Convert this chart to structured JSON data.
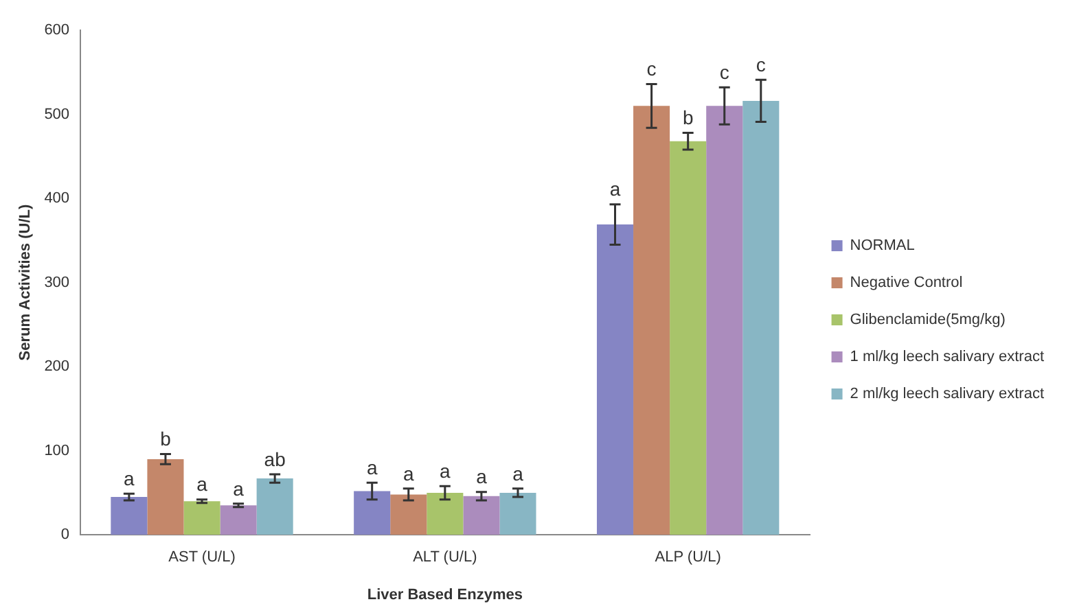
{
  "chart_data": {
    "type": "bar",
    "xlabel": "Liver Based Enzymes",
    "ylabel": "Serum Activities (U/L)",
    "categories": [
      "AST (U/L)",
      "ALT (U/L)",
      "ALP (U/L)"
    ],
    "ylim": [
      0,
      600
    ],
    "yticks": [
      0,
      100,
      200,
      300,
      400,
      500,
      600
    ],
    "grid": false,
    "legend": "right",
    "series": [
      {
        "name": "NORMAL",
        "color": "#8585c4",
        "values": [
          45,
          52,
          369
        ],
        "errors": [
          4,
          10,
          24
        ],
        "value_labels": [
          "a",
          "a",
          "a"
        ]
      },
      {
        "name": "Negative Control",
        "color": "#c4876a",
        "values": [
          90,
          48,
          510
        ],
        "errors": [
          6,
          7,
          26
        ],
        "value_labels": [
          "b",
          "a",
          "c"
        ]
      },
      {
        "name": "Glibenclamide(5mg/kg)",
        "color": "#a8c46a",
        "values": [
          40,
          50,
          468
        ],
        "errors": [
          2,
          8,
          10
        ],
        "value_labels": [
          "a",
          "a",
          "b"
        ]
      },
      {
        "name": "1 ml/kg leech salivary extract",
        "color": "#ab8cbd",
        "values": [
          35,
          46,
          510
        ],
        "errors": [
          2,
          5,
          22
        ],
        "value_labels": [
          "a",
          "a",
          "c"
        ]
      },
      {
        "name": "2 ml/kg leech salivary extract",
        "color": "#88b6c4",
        "values": [
          67,
          50,
          516
        ],
        "errors": [
          5,
          5,
          25
        ],
        "value_labels": [
          "ab",
          "a",
          "c"
        ]
      }
    ]
  }
}
